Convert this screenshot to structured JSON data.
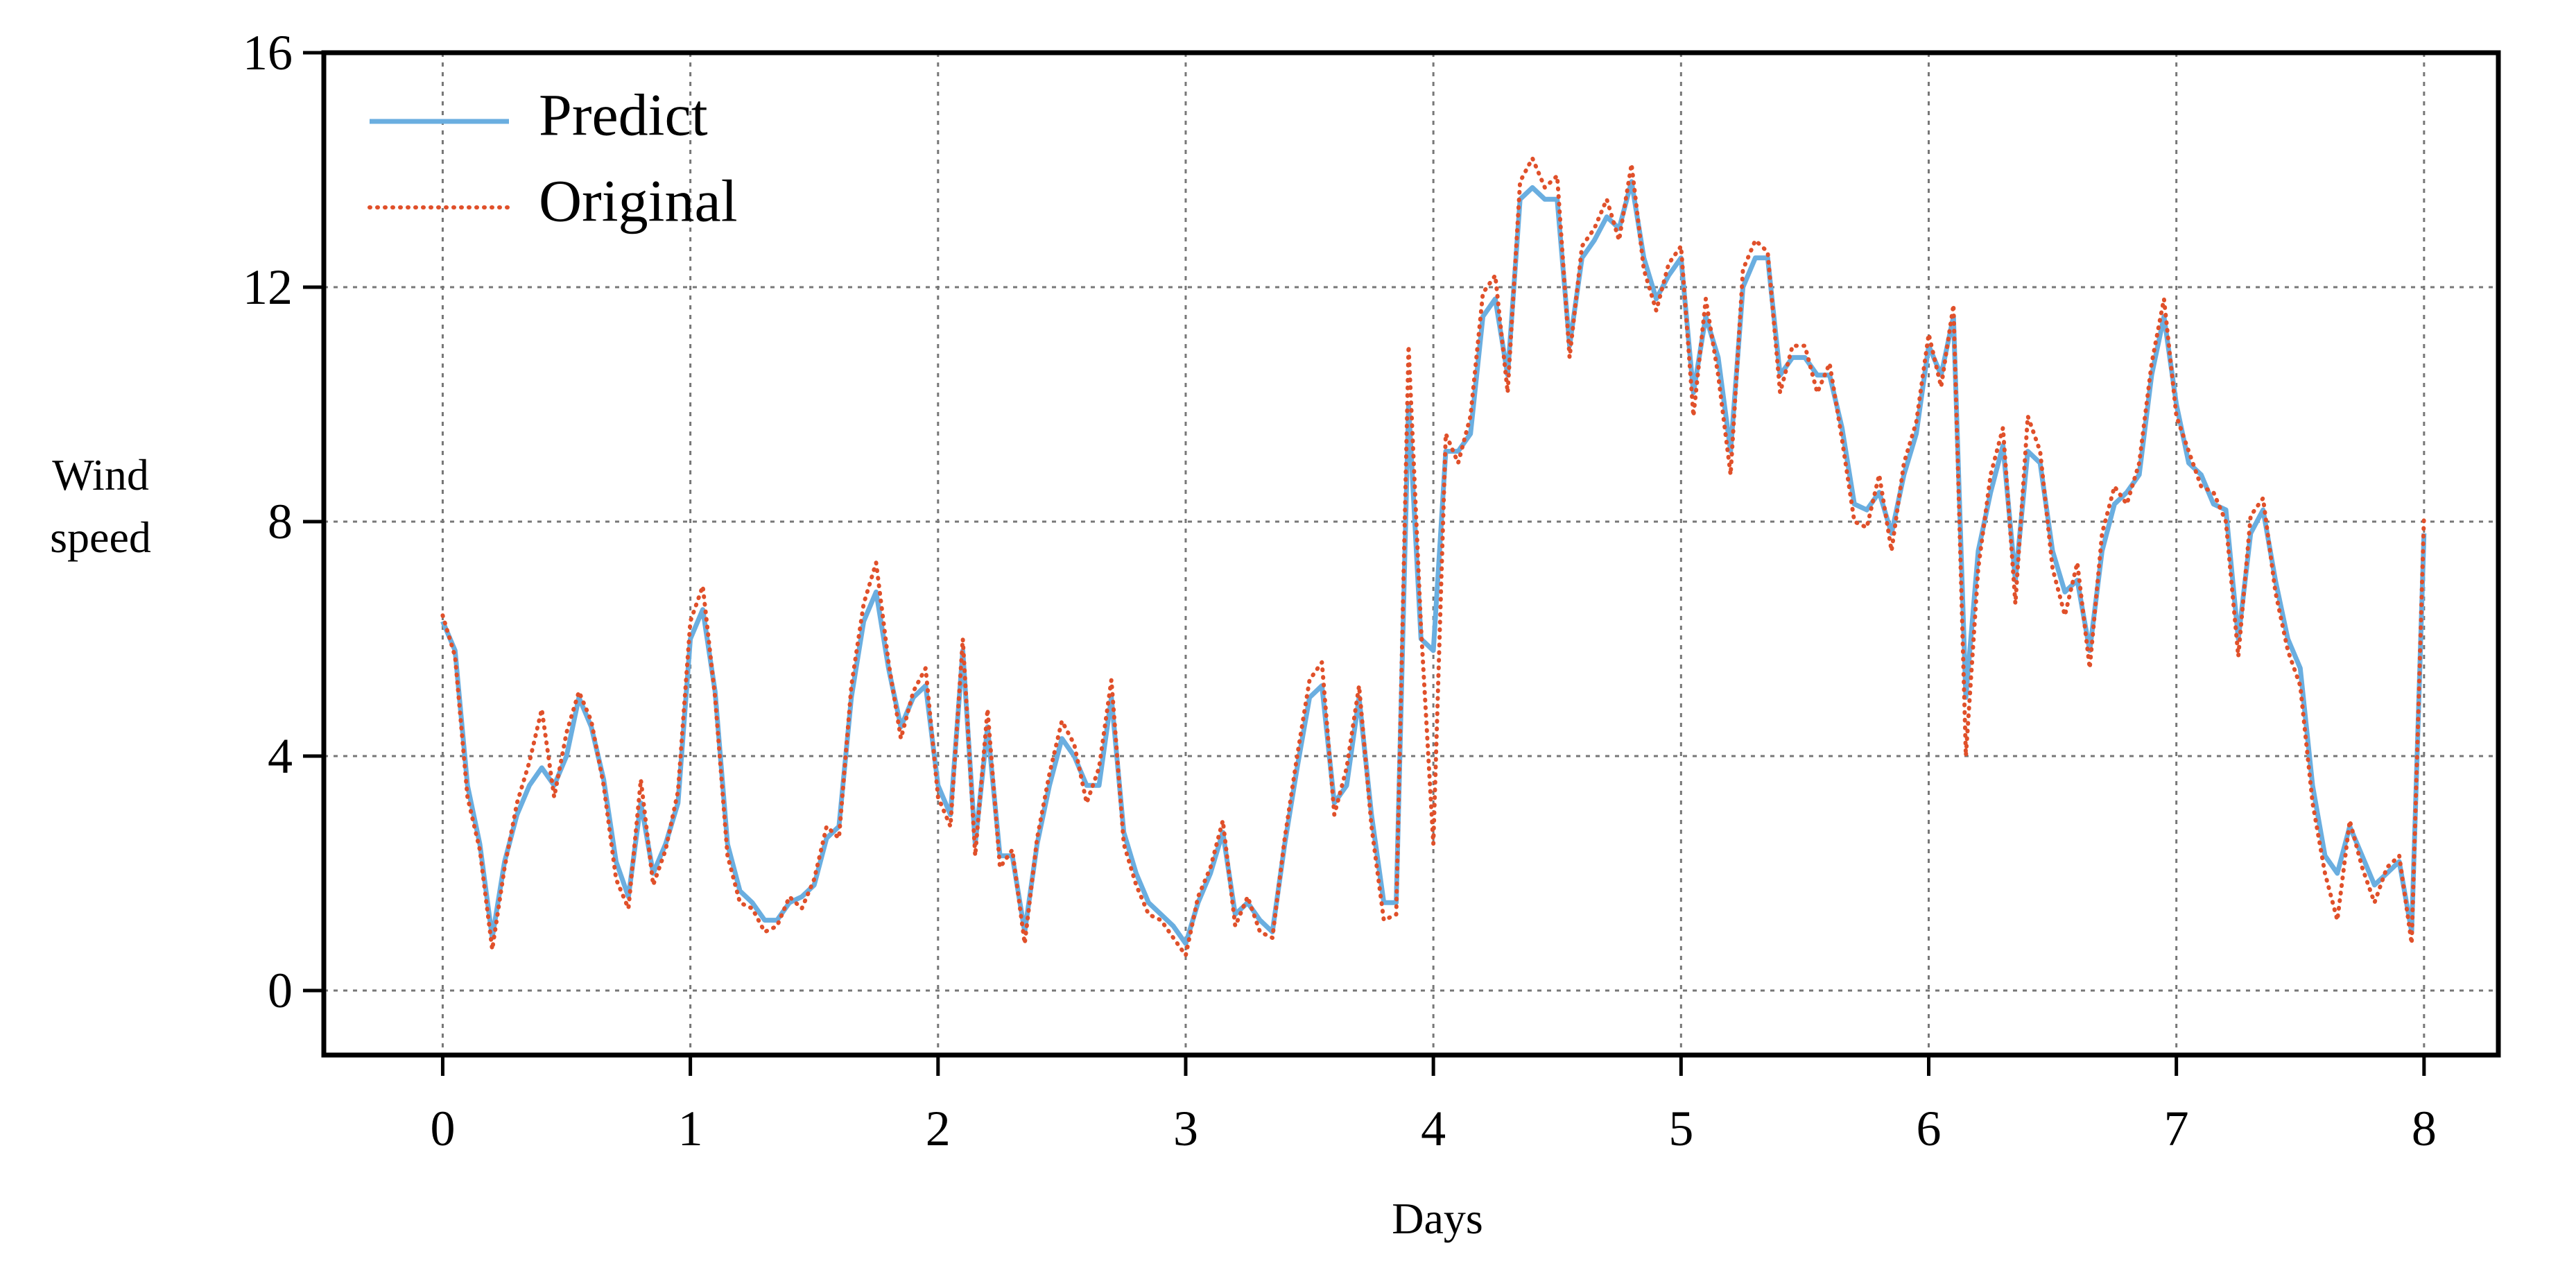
{
  "chart_data": {
    "type": "line",
    "xlabel": "Days",
    "ylabel": "Wind speed",
    "xlim": [
      -0.48,
      8.3
    ],
    "ylim": [
      -1.1,
      16
    ],
    "xticks": [
      0,
      1,
      2,
      3,
      4,
      5,
      6,
      7,
      8
    ],
    "yticks": [
      0,
      4,
      8,
      12,
      16
    ],
    "grid": true,
    "legend": "upper left",
    "x": [
      0,
      0.05,
      0.1,
      0.15,
      0.2,
      0.25,
      0.3,
      0.35,
      0.4,
      0.45,
      0.5,
      0.55,
      0.6,
      0.65,
      0.7,
      0.75,
      0.8,
      0.85,
      0.9,
      0.95,
      1,
      1.05,
      1.1,
      1.15,
      1.2,
      1.25,
      1.3,
      1.35,
      1.4,
      1.45,
      1.5,
      1.55,
      1.6,
      1.65,
      1.7,
      1.75,
      1.8,
      1.85,
      1.9,
      1.95,
      2,
      2.05,
      2.1,
      2.15,
      2.2,
      2.25,
      2.3,
      2.35,
      2.4,
      2.45,
      2.5,
      2.55,
      2.6,
      2.65,
      2.7,
      2.75,
      2.8,
      2.85,
      2.9,
      2.95,
      3,
      3.05,
      3.1,
      3.15,
      3.2,
      3.25,
      3.3,
      3.35,
      3.4,
      3.45,
      3.5,
      3.55,
      3.6,
      3.65,
      3.7,
      3.75,
      3.8,
      3.85,
      3.9,
      3.95,
      4,
      4.05,
      4.1,
      4.15,
      4.2,
      4.25,
      4.3,
      4.35,
      4.4,
      4.45,
      4.5,
      4.55,
      4.6,
      4.65,
      4.7,
      4.75,
      4.8,
      4.85,
      4.9,
      4.95,
      5,
      5.05,
      5.1,
      5.15,
      5.2,
      5.25,
      5.3,
      5.35,
      5.4,
      5.45,
      5.5,
      5.55,
      5.6,
      5.65,
      5.7,
      5.75,
      5.8,
      5.85,
      5.9,
      5.95,
      6,
      6.05,
      6.1,
      6.15,
      6.2,
      6.25,
      6.3,
      6.35,
      6.4,
      6.45,
      6.5,
      6.55,
      6.6,
      6.65,
      6.7,
      6.75,
      6.8,
      6.85,
      6.9,
      6.95,
      7,
      7.05,
      7.1,
      7.15,
      7.2,
      7.25,
      7.3,
      7.35,
      7.4,
      7.45,
      7.5,
      7.55,
      7.6,
      7.65,
      7.7,
      7.75,
      7.8,
      7.85,
      7.9,
      7.95,
      8
    ],
    "series": [
      {
        "name": "Predict",
        "color": "#6aaee0",
        "style": "solid",
        "values": [
          6.3,
          5.8,
          3.5,
          2.5,
          0.9,
          2.2,
          3.0,
          3.5,
          3.8,
          3.5,
          4.0,
          5.0,
          4.5,
          3.6,
          2.2,
          1.6,
          3.2,
          2.0,
          2.5,
          3.2,
          6.0,
          6.5,
          5.1,
          2.5,
          1.7,
          1.5,
          1.2,
          1.2,
          1.5,
          1.6,
          1.8,
          2.6,
          2.8,
          5.0,
          6.3,
          6.8,
          5.5,
          4.5,
          5.0,
          5.2,
          3.5,
          3.0,
          5.8,
          2.5,
          4.5,
          2.3,
          2.3,
          1.0,
          2.5,
          3.5,
          4.3,
          4.0,
          3.5,
          3.5,
          5.0,
          2.7,
          2.0,
          1.5,
          1.3,
          1.1,
          0.8,
          1.5,
          2.0,
          2.7,
          1.3,
          1.5,
          1.2,
          1.0,
          2.5,
          3.8,
          5.0,
          5.2,
          3.2,
          3.5,
          5.0,
          3.0,
          1.5,
          1.5,
          10.0,
          6.0,
          5.8,
          9.2,
          9.2,
          9.5,
          11.5,
          11.8,
          10.5,
          13.5,
          13.7,
          13.5,
          13.5,
          11.0,
          12.5,
          12.8,
          13.2,
          13.0,
          13.8,
          12.5,
          11.8,
          12.2,
          12.5,
          10.2,
          11.5,
          10.8,
          9.2,
          12.0,
          12.5,
          12.5,
          10.5,
          10.8,
          10.8,
          10.5,
          10.5,
          9.6,
          8.3,
          8.2,
          8.5,
          7.8,
          8.8,
          9.5,
          11.0,
          10.5,
          11.5,
          5.0,
          7.5,
          8.5,
          9.3,
          7.0,
          9.2,
          9.0,
          7.5,
          6.8,
          7.0,
          5.8,
          7.5,
          8.3,
          8.5,
          8.8,
          10.5,
          11.5,
          10.0,
          9.0,
          8.8,
          8.3,
          8.2,
          6.0,
          7.8,
          8.2,
          7.0,
          6.0,
          5.5,
          3.5,
          2.3,
          2.0,
          2.8,
          2.3,
          1.8,
          2.0,
          2.2,
          1.0,
          7.8
        ]
      },
      {
        "name": "Original",
        "color": "#e0502a",
        "style": "dotted",
        "values": [
          6.4,
          5.7,
          3.3,
          2.4,
          0.7,
          2.1,
          3.2,
          3.9,
          4.8,
          3.3,
          4.4,
          5.1,
          4.6,
          3.5,
          1.9,
          1.4,
          3.6,
          1.8,
          2.4,
          3.4,
          6.3,
          6.9,
          5.0,
          2.3,
          1.5,
          1.4,
          1.0,
          1.1,
          1.6,
          1.4,
          1.9,
          2.8,
          2.6,
          5.2,
          6.6,
          7.3,
          5.6,
          4.3,
          5.1,
          5.5,
          3.3,
          2.8,
          6.0,
          2.3,
          4.8,
          2.1,
          2.4,
          0.8,
          2.6,
          3.7,
          4.6,
          4.2,
          3.2,
          3.8,
          5.3,
          2.5,
          1.8,
          1.3,
          1.2,
          0.9,
          0.6,
          1.6,
          2.1,
          2.9,
          1.1,
          1.6,
          1.0,
          0.9,
          2.6,
          4.0,
          5.3,
          5.6,
          3.0,
          3.8,
          5.2,
          2.8,
          1.2,
          1.3,
          11.0,
          6.2,
          2.5,
          9.5,
          9.0,
          9.8,
          11.9,
          12.2,
          10.2,
          13.8,
          14.2,
          13.7,
          13.9,
          10.8,
          12.7,
          13.0,
          13.5,
          12.8,
          14.1,
          12.3,
          11.6,
          12.4,
          12.7,
          9.8,
          11.8,
          10.5,
          8.8,
          12.3,
          12.8,
          12.6,
          10.2,
          11.0,
          11.0,
          10.2,
          10.7,
          9.4,
          8.0,
          7.9,
          8.8,
          7.5,
          9.0,
          9.7,
          11.2,
          10.3,
          11.7,
          4.0,
          7.2,
          8.8,
          9.6,
          6.6,
          9.8,
          9.2,
          7.2,
          6.4,
          7.3,
          5.5,
          7.8,
          8.6,
          8.3,
          9.0,
          10.7,
          11.8,
          9.8,
          9.2,
          8.6,
          8.5,
          8.0,
          5.7,
          8.1,
          8.4,
          6.8,
          5.8,
          5.2,
          3.2,
          2.0,
          1.2,
          2.9,
          2.1,
          1.5,
          2.1,
          2.3,
          0.8,
          8.1
        ]
      }
    ]
  }
}
